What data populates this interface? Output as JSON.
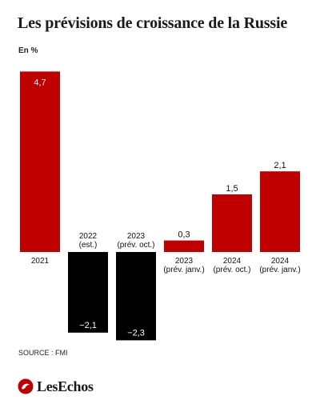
{
  "title": "Les prévisions de croissance de la Russie",
  "unit_label": "En %",
  "source": "SOURCE : FMI",
  "logo": {
    "text": "LesEchos",
    "icon": "les-echos-logo-icon"
  },
  "colors": {
    "positive": "#c00000",
    "negative": "#000000",
    "text": "#111111"
  },
  "chart_data": {
    "type": "bar",
    "categories": [
      "2021",
      "2022\n(est.)",
      "2023\n(prév. oct.)",
      "2023\n(prév. janv.)",
      "2024\n(prév. oct.)",
      "2024\n(prév. janv.)"
    ],
    "values": [
      4.7,
      -2.1,
      -2.3,
      0.3,
      1.5,
      2.1
    ],
    "value_labels": [
      "4,7",
      "−2,1",
      "−2,3",
      "0,3",
      "1,5",
      "2,1"
    ],
    "ylabel": "En %",
    "ylim": [
      -2.3,
      4.7
    ],
    "grid": false,
    "legend": "none"
  }
}
